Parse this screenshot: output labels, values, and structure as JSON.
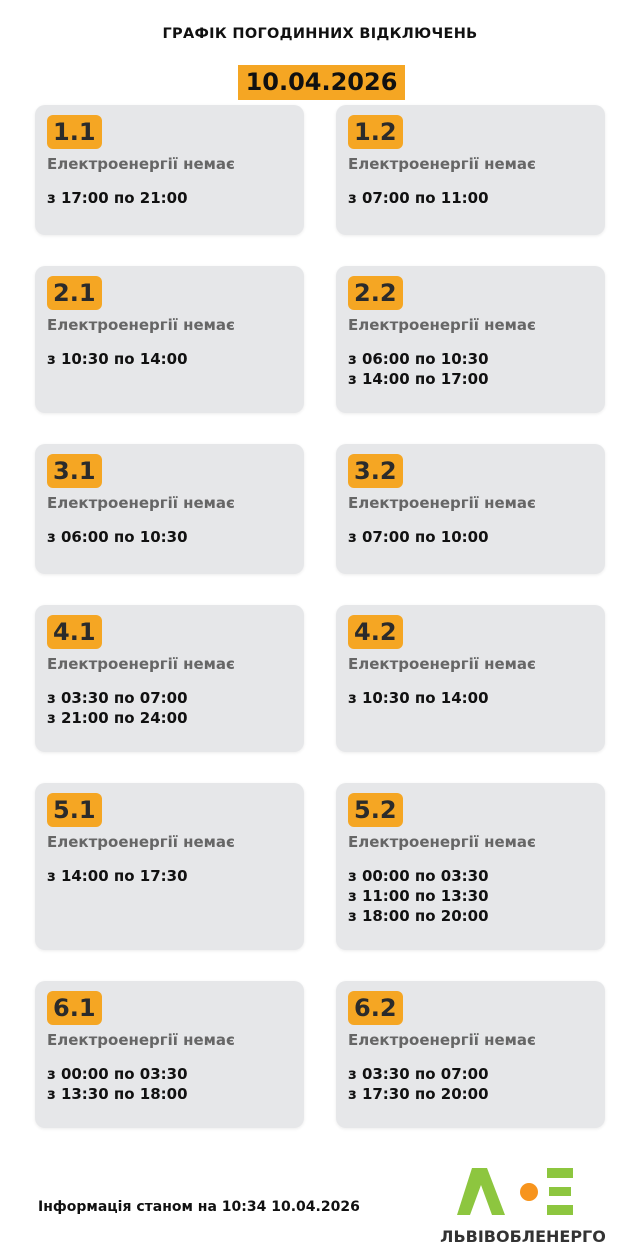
{
  "header": {
    "title": "ГРАФІК ПОГОДИННИХ ВІДКЛЮЧЕНЬ",
    "date": "10.04.2026"
  },
  "groups": [
    {
      "id": "1.1",
      "status": "Електроенергії немає",
      "times": [
        "з 17:00 по 21:00"
      ]
    },
    {
      "id": "1.2",
      "status": "Електроенергії немає",
      "times": [
        "з 07:00 по 11:00"
      ]
    },
    {
      "id": "2.1",
      "status": "Електроенергії немає",
      "times": [
        "з 10:30 по 14:00"
      ]
    },
    {
      "id": "2.2",
      "status": "Електроенергії немає",
      "times": [
        "з 06:00 по 10:30",
        "з 14:00 по 17:00"
      ]
    },
    {
      "id": "3.1",
      "status": "Електроенергії немає",
      "times": [
        "з 06:00 по 10:30"
      ]
    },
    {
      "id": "3.2",
      "status": "Електроенергії немає",
      "times": [
        "з 07:00 по 10:00"
      ]
    },
    {
      "id": "4.1",
      "status": "Електроенергії немає",
      "times": [
        "з 03:30 по 07:00",
        "з 21:00 по 24:00"
      ]
    },
    {
      "id": "4.2",
      "status": "Електроенергії немає",
      "times": [
        "з 10:30 по 14:00"
      ]
    },
    {
      "id": "5.1",
      "status": "Електроенергії немає",
      "times": [
        "з 14:00 по 17:30"
      ]
    },
    {
      "id": "5.2",
      "status": "Електроенергії немає",
      "times": [
        "з 00:00 по 03:30",
        "з 11:00 по 13:30",
        "з 18:00 по 20:00"
      ]
    },
    {
      "id": "6.1",
      "status": "Електроенергії немає",
      "times": [
        "з 00:00 по 03:30",
        "з 13:30 по 18:00"
      ]
    },
    {
      "id": "6.2",
      "status": "Електроенергії немає",
      "times": [
        "з 03:30 по 07:00",
        "з 17:30 по 20:00"
      ]
    }
  ],
  "footer": {
    "info": "Інформація станом на 10:34 10.04.2026",
    "logo_text": "ЛЬВІВОБЛЕНЕРГО"
  },
  "colors": {
    "accent": "#f5a623",
    "card_bg": "#e6e7e9",
    "logo_green": "#8dc63f",
    "logo_orange": "#f7941d"
  }
}
